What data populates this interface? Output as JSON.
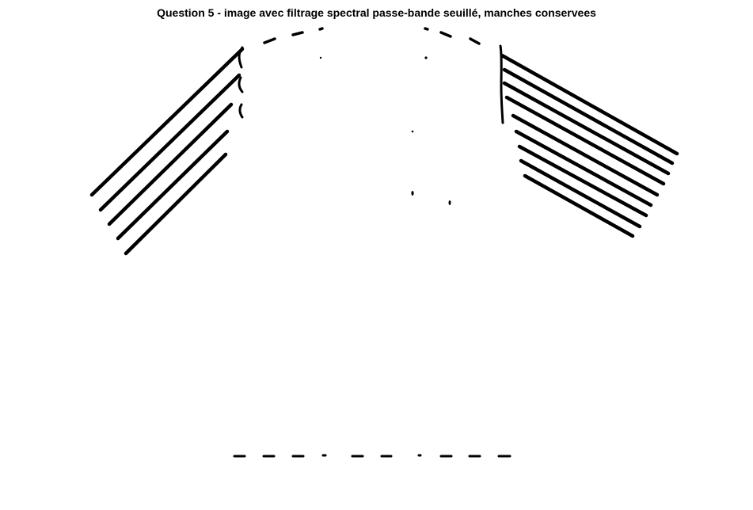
{
  "figure": {
    "title": "Question 5 - image avec filtrage spectral passe-bande seuillé, manches conservees",
    "content": "binary-edge-image",
    "ink_color": "#000000",
    "background_color": "#ffffff"
  }
}
